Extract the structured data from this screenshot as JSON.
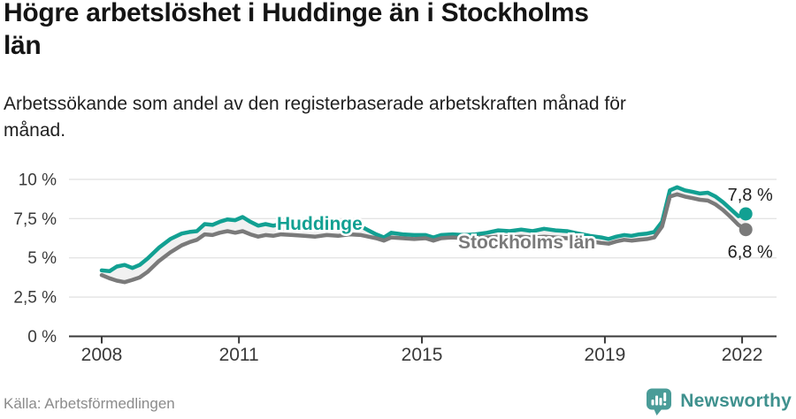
{
  "header": {
    "title_lines": [
      "Högre arbetslöshet i Huddinge än i Stockholms",
      "län"
    ],
    "subtitle_lines": [
      "Arbetssökande som andel av den registerbaserade arbetskraften månad för",
      "månad."
    ]
  },
  "footer": {
    "source": "Källa: Arbetsförmedlingen",
    "brand": "Newsworthy",
    "brand_text_color": "#3f918e",
    "brand_icon_color": "#4a9c98"
  },
  "chart_data": {
    "type": "line",
    "title": "Högre arbetslöshet i Huddinge än i Stockholms län",
    "xlabel": "",
    "ylabel": "",
    "ylim": [
      0,
      10
    ],
    "xlim": [
      2008,
      2022.2
    ],
    "grid": "horizontal",
    "legend_position": "inline-on-line",
    "y_ticks": [
      {
        "label": "10 %",
        "value": 10
      },
      {
        "label": "7,5 %",
        "value": 7.5
      },
      {
        "label": "5 %",
        "value": 5
      },
      {
        "label": "2,5 %",
        "value": 2.5
      },
      {
        "label": "0 %",
        "value": 0
      }
    ],
    "x_ticks": [
      {
        "label": "2008",
        "value": 2008
      },
      {
        "label": "2011",
        "value": 2011
      },
      {
        "label": "2015",
        "value": 2015
      },
      {
        "label": "2019",
        "value": 2019
      },
      {
        "label": "2022",
        "value": 2022
      }
    ],
    "band_fill_color": "#f1f1f1",
    "grid_color": "#e4e4e4",
    "axis_color": "#3a3a3a",
    "series": [
      {
        "name": "Huddinge",
        "color": "#12a092",
        "end_label": "7,8 %",
        "end_value": 7.8,
        "points": [
          [
            2008.0,
            4.2
          ],
          [
            2008.17,
            4.15
          ],
          [
            2008.33,
            4.45
          ],
          [
            2008.5,
            4.55
          ],
          [
            2008.67,
            4.35
          ],
          [
            2008.83,
            4.55
          ],
          [
            2009.0,
            4.95
          ],
          [
            2009.25,
            5.65
          ],
          [
            2009.5,
            6.2
          ],
          [
            2009.75,
            6.55
          ],
          [
            2009.92,
            6.65
          ],
          [
            2010.08,
            6.7
          ],
          [
            2010.25,
            7.15
          ],
          [
            2010.42,
            7.1
          ],
          [
            2010.58,
            7.3
          ],
          [
            2010.75,
            7.45
          ],
          [
            2010.92,
            7.4
          ],
          [
            2011.08,
            7.6
          ],
          [
            2011.25,
            7.3
          ],
          [
            2011.42,
            7.05
          ],
          [
            2011.58,
            7.15
          ],
          [
            2011.75,
            7.05
          ],
          [
            2011.92,
            7.15
          ],
          [
            2012.17,
            7.1
          ],
          [
            2012.42,
            7.0
          ],
          [
            2012.67,
            6.95
          ],
          [
            2012.92,
            7.0
          ],
          [
            2013.17,
            6.95
          ],
          [
            2013.42,
            7.05
          ],
          [
            2013.67,
            7.0
          ],
          [
            2013.83,
            6.75
          ],
          [
            2014.0,
            6.5
          ],
          [
            2014.17,
            6.3
          ],
          [
            2014.33,
            6.6
          ],
          [
            2014.58,
            6.5
          ],
          [
            2014.83,
            6.45
          ],
          [
            2015.08,
            6.45
          ],
          [
            2015.25,
            6.3
          ],
          [
            2015.42,
            6.45
          ],
          [
            2015.67,
            6.5
          ],
          [
            2015.92,
            6.45
          ],
          [
            2016.17,
            6.5
          ],
          [
            2016.42,
            6.6
          ],
          [
            2016.67,
            6.75
          ],
          [
            2016.92,
            6.7
          ],
          [
            2017.17,
            6.8
          ],
          [
            2017.42,
            6.7
          ],
          [
            2017.67,
            6.85
          ],
          [
            2017.92,
            6.75
          ],
          [
            2018.17,
            6.7
          ],
          [
            2018.42,
            6.55
          ],
          [
            2018.67,
            6.4
          ],
          [
            2018.92,
            6.3
          ],
          [
            2019.08,
            6.2
          ],
          [
            2019.25,
            6.35
          ],
          [
            2019.42,
            6.45
          ],
          [
            2019.58,
            6.4
          ],
          [
            2019.75,
            6.5
          ],
          [
            2019.92,
            6.55
          ],
          [
            2020.08,
            6.65
          ],
          [
            2020.25,
            7.3
          ],
          [
            2020.42,
            9.3
          ],
          [
            2020.58,
            9.5
          ],
          [
            2020.75,
            9.3
          ],
          [
            2020.92,
            9.2
          ],
          [
            2021.08,
            9.1
          ],
          [
            2021.25,
            9.15
          ],
          [
            2021.42,
            8.9
          ],
          [
            2021.58,
            8.55
          ],
          [
            2021.75,
            8.1
          ],
          [
            2021.92,
            7.65
          ],
          [
            2022.08,
            7.8
          ]
        ]
      },
      {
        "name": "Stockholms län",
        "color": "#7a7a7a",
        "end_label": "6,8 %",
        "end_value": 6.8,
        "points": [
          [
            2008.0,
            3.9
          ],
          [
            2008.17,
            3.7
          ],
          [
            2008.33,
            3.55
          ],
          [
            2008.5,
            3.45
          ],
          [
            2008.67,
            3.6
          ],
          [
            2008.83,
            3.75
          ],
          [
            2009.0,
            4.1
          ],
          [
            2009.25,
            4.8
          ],
          [
            2009.5,
            5.35
          ],
          [
            2009.75,
            5.8
          ],
          [
            2009.92,
            6.0
          ],
          [
            2010.08,
            6.15
          ],
          [
            2010.25,
            6.5
          ],
          [
            2010.42,
            6.45
          ],
          [
            2010.58,
            6.6
          ],
          [
            2010.75,
            6.7
          ],
          [
            2010.92,
            6.6
          ],
          [
            2011.08,
            6.7
          ],
          [
            2011.25,
            6.5
          ],
          [
            2011.42,
            6.35
          ],
          [
            2011.58,
            6.45
          ],
          [
            2011.75,
            6.4
          ],
          [
            2011.92,
            6.5
          ],
          [
            2012.17,
            6.45
          ],
          [
            2012.42,
            6.4
          ],
          [
            2012.67,
            6.35
          ],
          [
            2012.92,
            6.45
          ],
          [
            2013.17,
            6.4
          ],
          [
            2013.42,
            6.5
          ],
          [
            2013.67,
            6.45
          ],
          [
            2013.83,
            6.35
          ],
          [
            2014.0,
            6.25
          ],
          [
            2014.17,
            6.1
          ],
          [
            2014.33,
            6.3
          ],
          [
            2014.58,
            6.25
          ],
          [
            2014.83,
            6.2
          ],
          [
            2015.08,
            6.25
          ],
          [
            2015.25,
            6.1
          ],
          [
            2015.42,
            6.25
          ],
          [
            2015.67,
            6.3
          ],
          [
            2015.92,
            6.25
          ],
          [
            2016.17,
            6.3
          ],
          [
            2016.42,
            6.3
          ],
          [
            2016.67,
            6.35
          ],
          [
            2016.92,
            6.3
          ],
          [
            2017.17,
            6.35
          ],
          [
            2017.42,
            6.3
          ],
          [
            2017.67,
            6.35
          ],
          [
            2017.92,
            6.3
          ],
          [
            2018.17,
            6.25
          ],
          [
            2018.42,
            6.15
          ],
          [
            2018.67,
            6.05
          ],
          [
            2018.92,
            5.95
          ],
          [
            2019.08,
            5.9
          ],
          [
            2019.25,
            6.05
          ],
          [
            2019.42,
            6.15
          ],
          [
            2019.58,
            6.1
          ],
          [
            2019.75,
            6.15
          ],
          [
            2019.92,
            6.2
          ],
          [
            2020.08,
            6.3
          ],
          [
            2020.25,
            7.0
          ],
          [
            2020.42,
            8.9
          ],
          [
            2020.58,
            9.05
          ],
          [
            2020.75,
            8.9
          ],
          [
            2020.92,
            8.8
          ],
          [
            2021.08,
            8.7
          ],
          [
            2021.25,
            8.65
          ],
          [
            2021.42,
            8.4
          ],
          [
            2021.58,
            8.05
          ],
          [
            2021.75,
            7.6
          ],
          [
            2021.92,
            7.1
          ],
          [
            2022.08,
            6.8
          ]
        ]
      }
    ]
  }
}
